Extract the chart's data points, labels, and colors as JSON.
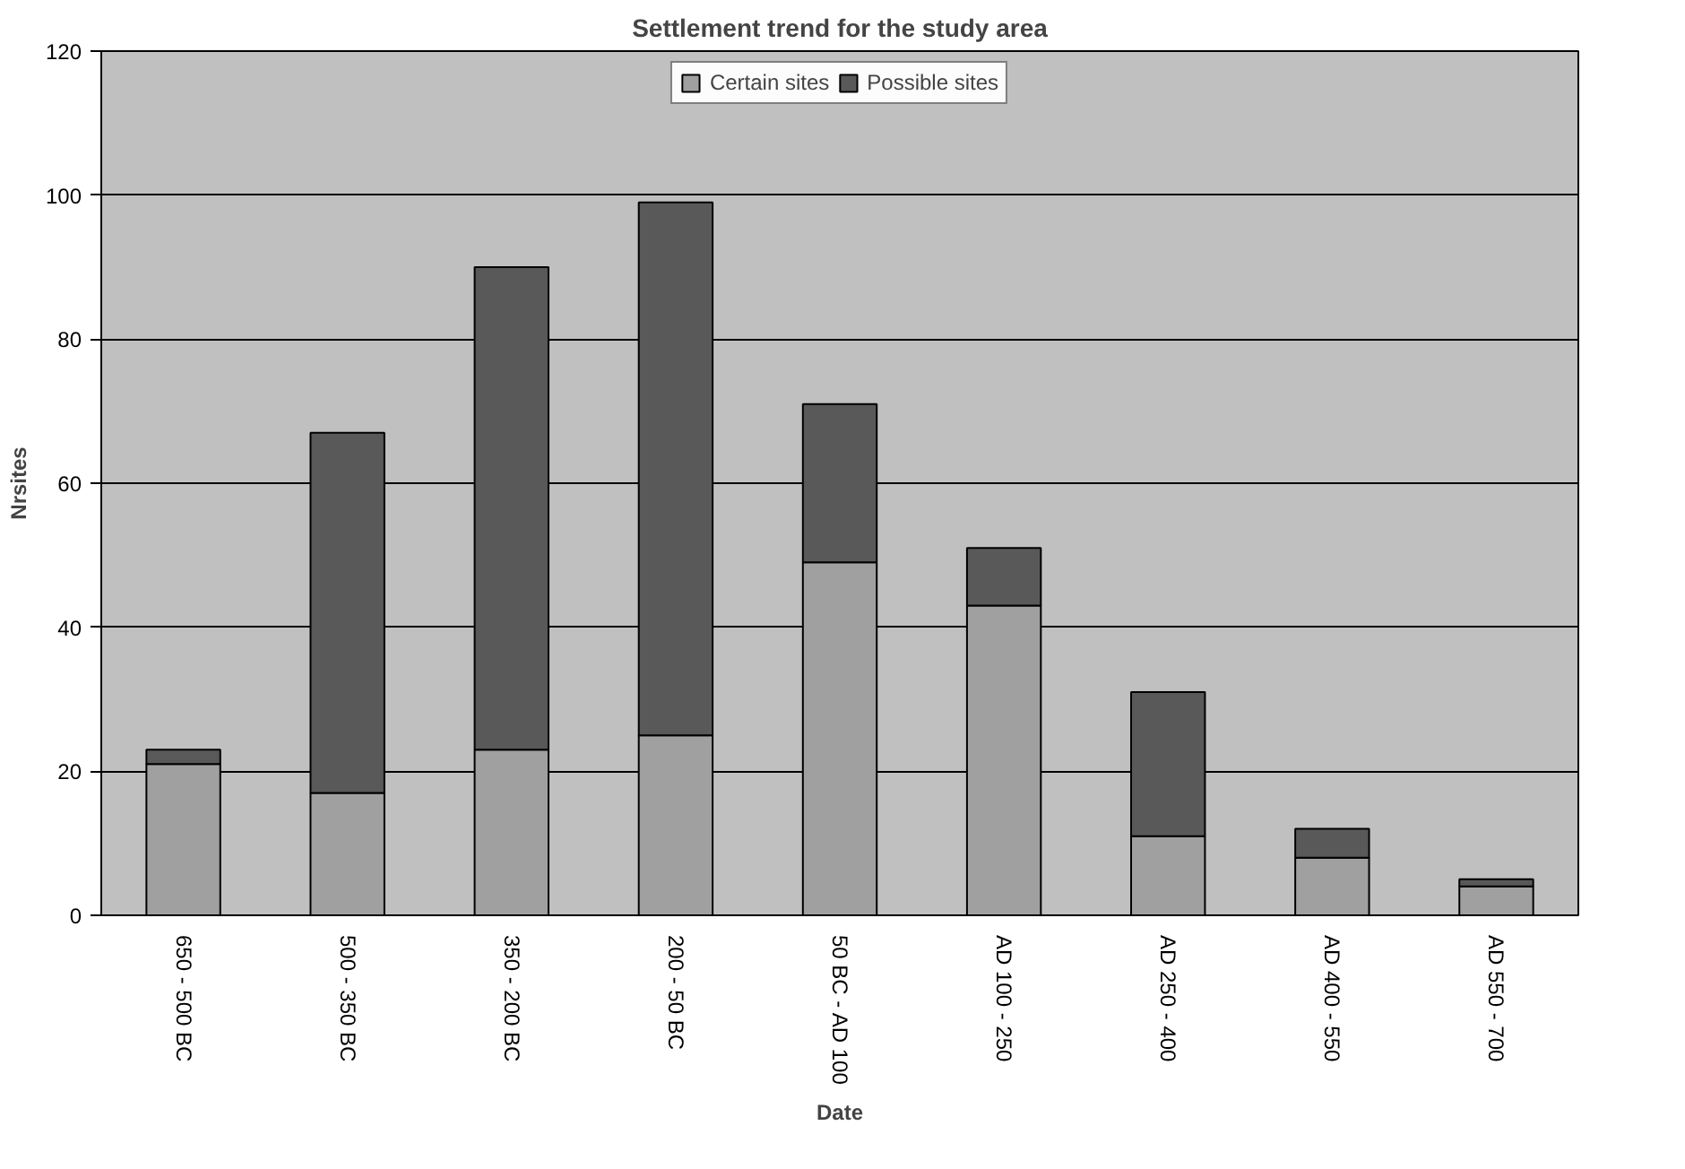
{
  "chart_data": {
    "type": "bar",
    "title": "Settlement trend for the study area",
    "xlabel": "Date",
    "ylabel": "Nrsites",
    "categories": [
      "650 - 500 BC",
      "500 - 350 BC",
      "350 - 200 BC",
      "200 - 50 BC",
      "50 BC - AD 100",
      "AD 100 - 250",
      "AD 250 - 400",
      "AD 400 - 550",
      "AD 550 - 700"
    ],
    "stacked": true,
    "series": [
      {
        "name": "Certain sites",
        "color": "#a0a0a0",
        "values": [
          21,
          17,
          23,
          25,
          49,
          43,
          11,
          8,
          4
        ]
      },
      {
        "name": "Possible sites",
        "color": "#595959",
        "values": [
          2,
          50,
          67,
          74,
          22,
          8,
          20,
          4,
          1
        ]
      }
    ],
    "ylim": [
      0,
      120
    ],
    "yticks": [
      0,
      20,
      40,
      60,
      80,
      100,
      120
    ],
    "grid": "y",
    "legend": "top"
  }
}
